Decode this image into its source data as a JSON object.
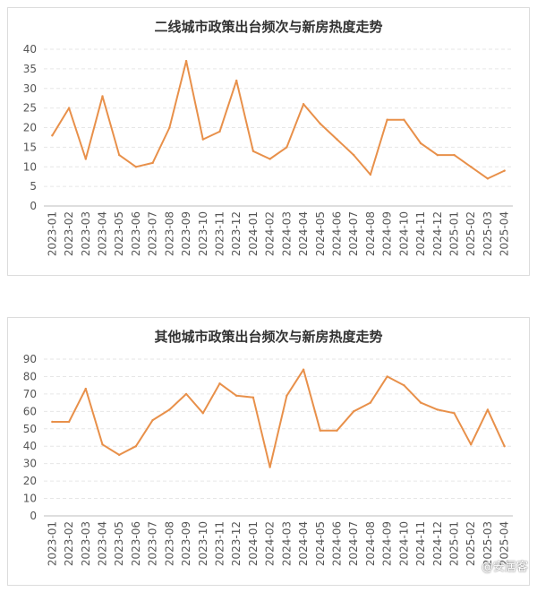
{
  "chart_data": [
    {
      "type": "line",
      "title": "二线城市政策出台频次与新房热度走势",
      "xlabel": "",
      "ylabel": "",
      "ylim": [
        0,
        40
      ],
      "yticks": [
        0,
        5,
        10,
        15,
        20,
        25,
        30,
        35,
        40
      ],
      "grid": true,
      "line_color": "#e8904a",
      "categories": [
        "2023-01",
        "2023-02",
        "2023-03",
        "2023-04",
        "2023-05",
        "2023-06",
        "2023-07",
        "2023-08",
        "2023-09",
        "2023-10",
        "2023-11",
        "2023-12",
        "2024-01",
        "2024-02",
        "2024-03",
        "2024-04",
        "2024-05",
        "2024-06",
        "2024-07",
        "2024-08",
        "2024-09",
        "2024-10",
        "2024-11",
        "2024-12",
        "2025-01",
        "2025-02",
        "2025-03",
        "2025-04"
      ],
      "values": [
        18,
        25,
        12,
        28,
        13,
        10,
        11,
        20,
        37,
        17,
        19,
        32,
        14,
        12,
        15,
        26,
        21,
        17,
        13,
        8,
        22,
        22,
        16,
        13,
        13,
        10,
        7,
        9
      ]
    },
    {
      "type": "line",
      "title": "其他城市政策出台频次与新房热度走势",
      "xlabel": "",
      "ylabel": "",
      "ylim": [
        0,
        90
      ],
      "yticks": [
        0,
        10,
        20,
        30,
        40,
        50,
        60,
        70,
        80,
        90
      ],
      "grid": true,
      "line_color": "#e8904a",
      "categories": [
        "2023-01",
        "2023-02",
        "2023-03",
        "2023-04",
        "2023-05",
        "2023-06",
        "2023-07",
        "2023-08",
        "2023-09",
        "2023-10",
        "2023-11",
        "2023-12",
        "2024-01",
        "2024-02",
        "2024-03",
        "2024-04",
        "2024-05",
        "2024-06",
        "2024-07",
        "2024-08",
        "2024-09",
        "2024-10",
        "2024-11",
        "2024-12",
        "2025-01",
        "2025-02",
        "2025-03",
        "2025-04"
      ],
      "values": [
        54,
        54,
        73,
        41,
        35,
        40,
        55,
        61,
        70,
        59,
        76,
        69,
        68,
        28,
        69,
        84,
        49,
        49,
        60,
        65,
        80,
        75,
        65,
        61,
        59,
        41,
        61,
        40
      ]
    }
  ],
  "watermark": "@安居客"
}
